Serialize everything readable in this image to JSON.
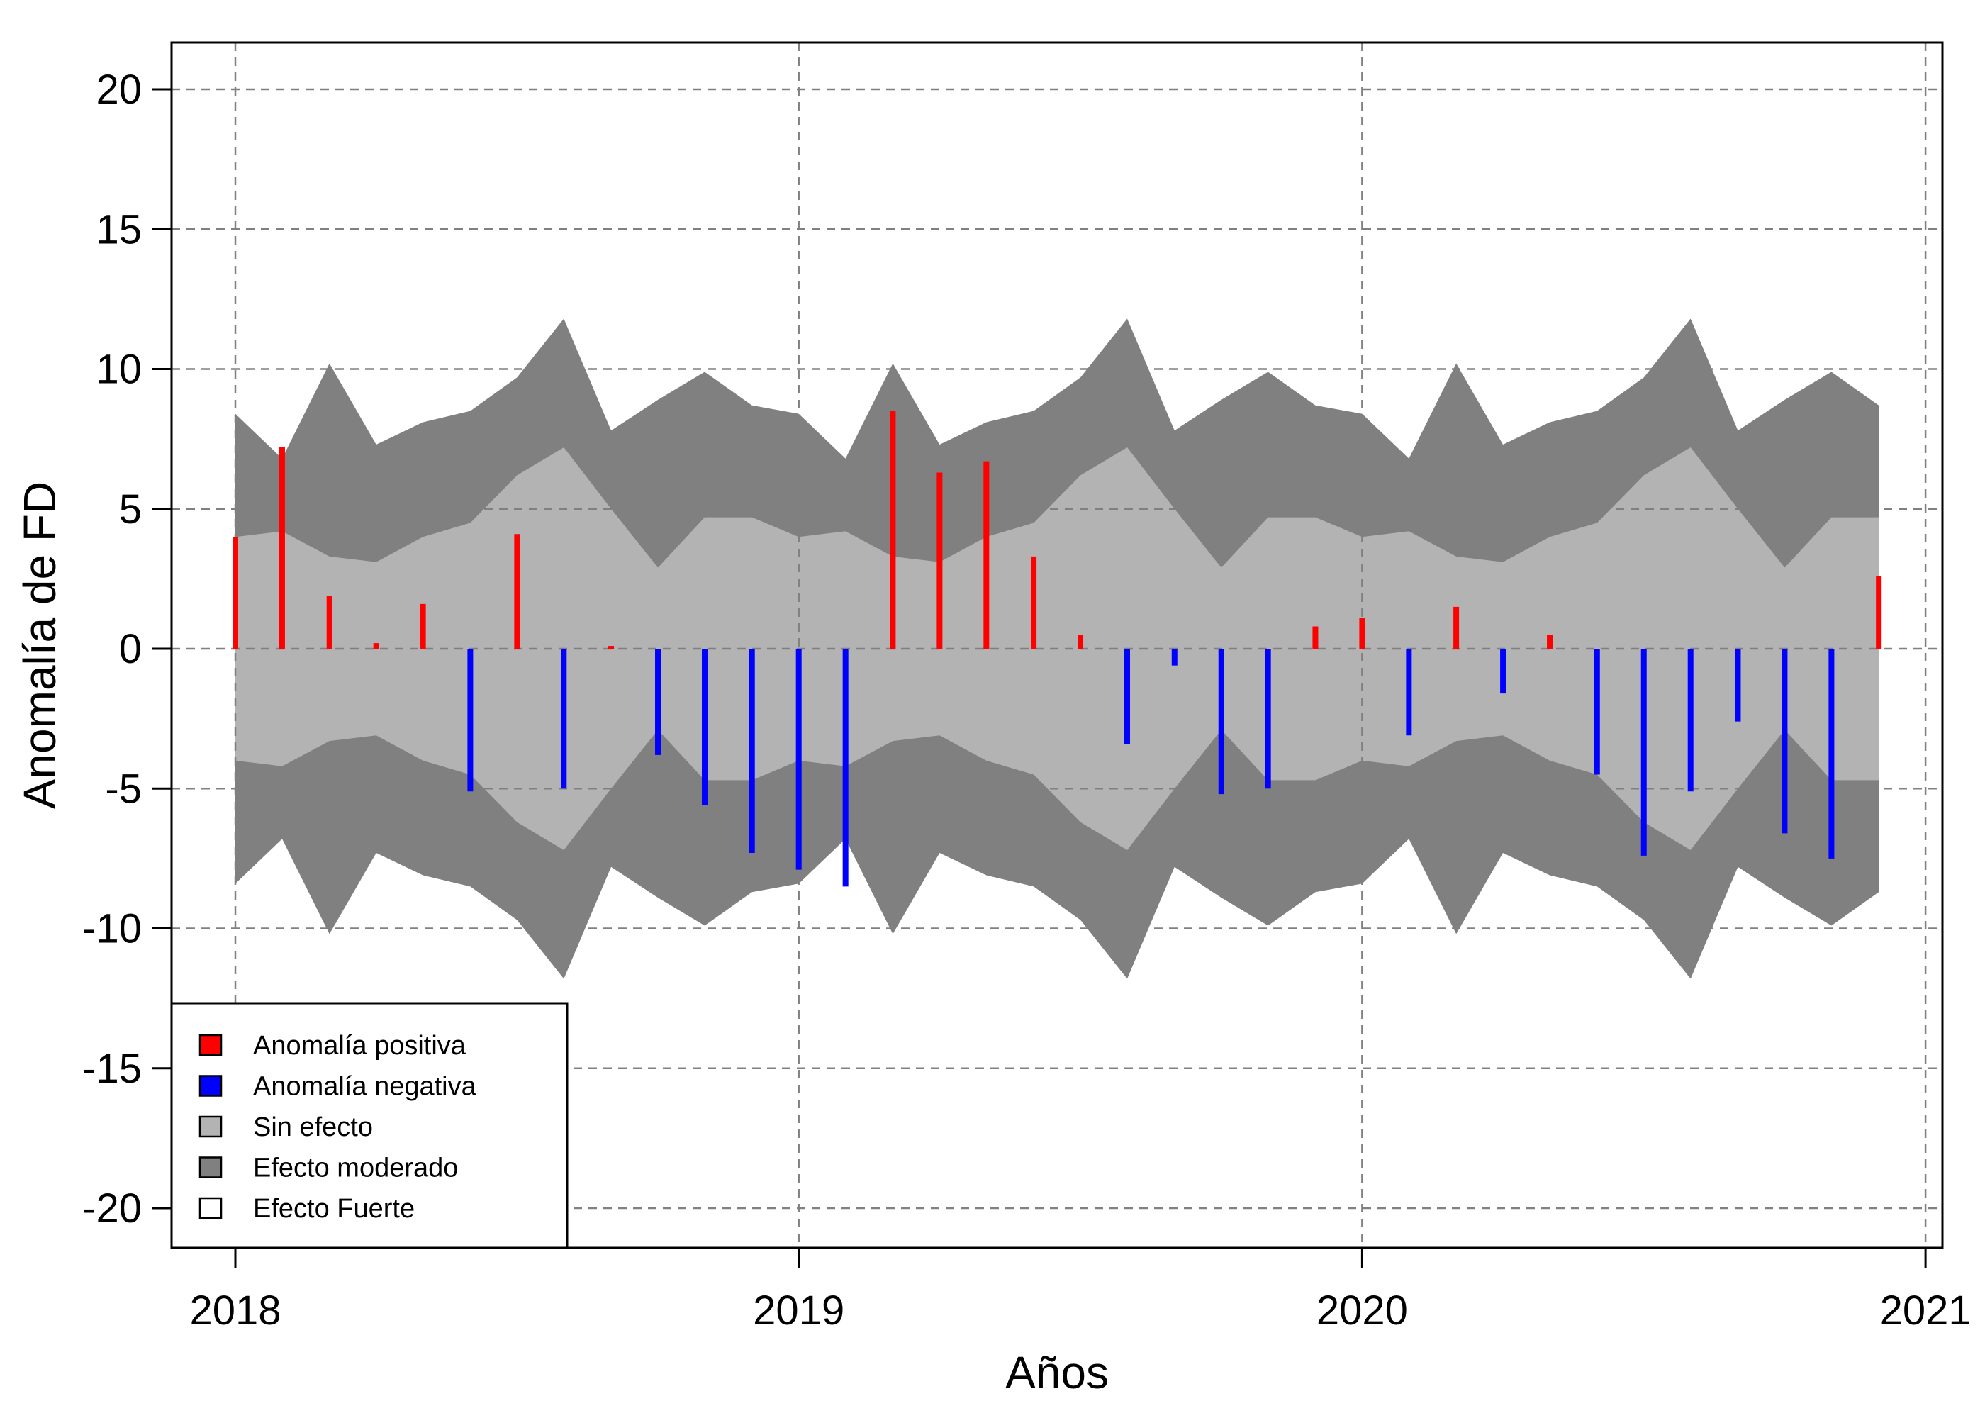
{
  "chart_data": {
    "type": "bar",
    "xlabel": "Años",
    "ylabel": "Anomalía de FD",
    "x_ticks": [
      "2018",
      "2019",
      "2020",
      "2021"
    ],
    "y_ticks": [
      "20",
      "15",
      "10",
      "5",
      "0",
      "-5",
      "-10",
      "-15",
      "-20"
    ],
    "xlim": [
      2018.0,
      2021.0
    ],
    "ylim": [
      -21.5,
      21.5
    ],
    "grid": true,
    "legend_position": "bottom-left",
    "colors": {
      "positive": "#ff0000",
      "negative": "#0000ff",
      "sin_efecto": "#b3b3b3",
      "efecto_moderado": "#808080",
      "efecto_fuerte": "#ffffff",
      "grid": "#808080"
    },
    "legend": [
      {
        "label": "Anomalía positiva",
        "color": "#ff0000"
      },
      {
        "label": "Anomalía negativa",
        "color": "#0000ff"
      },
      {
        "label": "Sin efecto",
        "color": "#b3b3b3"
      },
      {
        "label": "Efecto moderado",
        "color": "#808080"
      },
      {
        "label": "Efecto Fuerte",
        "color": "#ffffff"
      }
    ],
    "x": [
      2018.0,
      2018.083,
      2018.167,
      2018.25,
      2018.333,
      2018.417,
      2018.5,
      2018.583,
      2018.667,
      2018.75,
      2018.833,
      2018.917,
      2019.0,
      2019.083,
      2019.167,
      2019.25,
      2019.333,
      2019.417,
      2019.5,
      2019.583,
      2019.667,
      2019.75,
      2019.833,
      2019.917,
      2020.0,
      2020.083,
      2020.167,
      2020.25,
      2020.333,
      2020.417,
      2020.5,
      2020.583,
      2020.667,
      2020.75,
      2020.833,
      2020.917
    ],
    "anomaly": [
      4.0,
      7.2,
      1.9,
      0.2,
      1.6,
      -5.1,
      4.1,
      -5.0,
      0.1,
      -3.8,
      -5.6,
      -7.3,
      -7.9,
      -8.5,
      8.5,
      6.3,
      6.7,
      3.3,
      0.5,
      -3.4,
      -0.6,
      -5.2,
      -5.0,
      0.8,
      1.1,
      -3.1,
      1.5,
      -1.6,
      0.5,
      -4.5,
      -7.4,
      -5.1,
      -2.6,
      -6.6,
      -7.5,
      2.6
    ],
    "sin_efecto_upper": [
      4.0,
      4.2,
      3.3,
      3.1,
      4.0,
      4.5,
      6.2,
      7.2,
      5.0,
      2.9,
      4.7,
      4.7,
      4.0,
      4.2,
      3.3,
      3.1,
      4.0,
      4.5,
      6.2,
      7.2,
      5.0,
      2.9,
      4.7,
      4.7,
      4.0,
      4.2,
      3.3,
      3.1,
      4.0,
      4.5,
      6.2,
      7.2,
      5.0,
      2.9,
      4.7,
      4.7
    ],
    "efecto_moderado_upper": [
      8.4,
      6.8,
      10.2,
      7.3,
      8.1,
      8.5,
      9.7,
      11.8,
      7.8,
      8.9,
      9.9,
      8.7,
      8.4,
      6.8,
      10.2,
      7.3,
      8.1,
      8.5,
      9.7,
      11.8,
      7.8,
      8.9,
      9.9,
      8.7,
      8.4,
      6.8,
      10.2,
      7.3,
      8.1,
      8.5,
      9.7,
      11.8,
      7.8,
      8.9,
      9.9,
      8.7
    ]
  }
}
